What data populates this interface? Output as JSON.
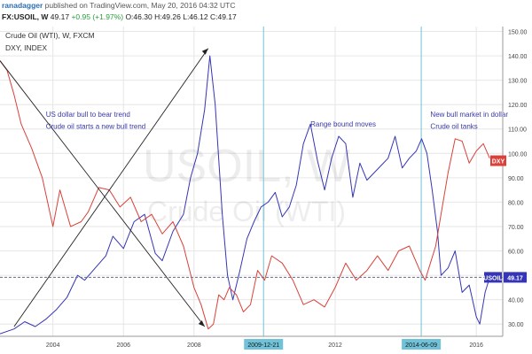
{
  "header": {
    "author": "ranadagger",
    "published": "published on TradingView.com, May 20, 2016 04:32 UTC"
  },
  "quote": {
    "symbol": "FX:USOIL, W",
    "last": "49.17",
    "change": "+0.95 (+1.97%)",
    "open": "O:46.30",
    "high": "H:49.26",
    "low": "L:46.12",
    "close": "C:49.17"
  },
  "colors": {
    "oil": "#3535b5",
    "dxy": "#d9413a",
    "vline": "#6fc2d8",
    "grid": "#e6e6e6",
    "dashed": "#6a6a8a",
    "axis_label_bg": "#6fc2d8"
  },
  "chart_data": {
    "type": "line",
    "title": "Crude Oil (WTI), W, FXCM",
    "subtitle": "DXY, INDEX",
    "watermark": "USOIL, W",
    "watermark_sub": "Crude Oil (WTI)",
    "grid": true,
    "ylim": [
      25,
      152
    ],
    "xlim": [
      2002.5,
      2016.75
    ],
    "x_ticks": [
      2004,
      2006,
      2008,
      2012,
      2016
    ],
    "x_tick_labels": [
      "2004",
      "2006",
      "2008",
      "2012",
      "2016"
    ],
    "y_ticks": [
      30,
      40,
      50,
      60,
      70,
      80,
      90,
      100,
      110,
      120,
      130,
      140,
      150
    ],
    "y_tick_labels": [
      "30.00",
      "40.00",
      "50.00",
      "60.00",
      "70.00",
      "80.00",
      "90.00",
      "100.00",
      "110.00",
      "120.00",
      "130.00",
      "140.00",
      "150.00"
    ],
    "series": [
      {
        "name": "USOIL",
        "x": [
          2002.5,
          2002.9,
          2003.2,
          2003.5,
          2003.8,
          2004.1,
          2004.4,
          2004.7,
          2004.9,
          2005.2,
          2005.5,
          2005.7,
          2006.0,
          2006.3,
          2006.6,
          2006.9,
          2007.1,
          2007.4,
          2007.7,
          2007.9,
          2008.1,
          2008.3,
          2008.45,
          2008.6,
          2008.8,
          2008.95,
          2009.1,
          2009.3,
          2009.5,
          2009.7,
          2009.9,
          2010.1,
          2010.3,
          2010.5,
          2010.7,
          2010.9,
          2011.1,
          2011.3,
          2011.5,
          2011.7,
          2011.9,
          2012.1,
          2012.3,
          2012.5,
          2012.7,
          2012.9,
          2013.1,
          2013.3,
          2013.5,
          2013.7,
          2013.9,
          2014.1,
          2014.3,
          2014.45,
          2014.6,
          2014.75,
          2014.9,
          2015.0,
          2015.2,
          2015.4,
          2015.6,
          2015.8,
          2016.0,
          2016.1,
          2016.25,
          2016.38
        ],
        "values": [
          26,
          28,
          31,
          29,
          32,
          36,
          41,
          50,
          48,
          53,
          58,
          66,
          61,
          72,
          75,
          59,
          56,
          68,
          75,
          90,
          100,
          118,
          140,
          120,
          75,
          50,
          40,
          52,
          65,
          72,
          78,
          80,
          84,
          74,
          78,
          87,
          104,
          112,
          97,
          85,
          98,
          107,
          104,
          82,
          96,
          89,
          92,
          95,
          98,
          107,
          94,
          98,
          101,
          106,
          100,
          85,
          68,
          50,
          53,
          60,
          43,
          46,
          33,
          30,
          43,
          49.17
        ]
      },
      {
        "name": "DXY",
        "x": [
          2002.5,
          2002.7,
          2002.9,
          2003.1,
          2003.4,
          2003.7,
          2004.0,
          2004.2,
          2004.5,
          2004.8,
          2005.0,
          2005.3,
          2005.6,
          2005.9,
          2006.2,
          2006.5,
          2006.8,
          2007.1,
          2007.4,
          2007.7,
          2008.0,
          2008.2,
          2008.4,
          2008.55,
          2008.7,
          2008.85,
          2009.0,
          2009.2,
          2009.4,
          2009.6,
          2009.8,
          2010.0,
          2010.2,
          2010.5,
          2010.8,
          2011.1,
          2011.4,
          2011.7,
          2012.0,
          2012.3,
          2012.6,
          2012.9,
          2013.2,
          2013.5,
          2013.8,
          2014.1,
          2014.4,
          2014.55,
          2014.7,
          2014.85,
          2015.0,
          2015.2,
          2015.4,
          2015.6,
          2015.8,
          2016.0,
          2016.2,
          2016.38
        ],
        "values": [
          138,
          134,
          124,
          112,
          102,
          90,
          70,
          85,
          70,
          72,
          76,
          86,
          85,
          78,
          82,
          72,
          75,
          67,
          72,
          62,
          45,
          38,
          28,
          30,
          42,
          40,
          45,
          42,
          35,
          38,
          52,
          48,
          58,
          55,
          48,
          38,
          40,
          37,
          45,
          55,
          48,
          52,
          58,
          52,
          60,
          62,
          52,
          48,
          55,
          62,
          75,
          92,
          106,
          105,
          96,
          101,
          104,
          98
        ]
      }
    ],
    "annotations": [
      {
        "text": "US dollar bull to bear trend",
        "x": 2003.8,
        "y": 115
      },
      {
        "text": "Crude oil starts a new bull trend",
        "x": 2003.8,
        "y": 110
      },
      {
        "text": "Range bound moves",
        "x": 2011.3,
        "y": 111
      },
      {
        "text": "New bull market in dollar",
        "x": 2014.7,
        "y": 115
      },
      {
        "text": "Crude oil tanks",
        "x": 2014.7,
        "y": 110
      }
    ],
    "trendlines": [
      {
        "x1": 2002.5,
        "y1": 138,
        "x2": 2008.3,
        "y2": 29
      },
      {
        "x1": 2002.9,
        "y1": 29,
        "x2": 2008.4,
        "y2": 143
      }
    ],
    "hlines": [
      {
        "y": 49.17,
        "style": "dashed"
      }
    ],
    "vlines": [
      {
        "x": 2009.97,
        "label": "2009-12-21"
      },
      {
        "x": 2014.44,
        "label": "2014-06-09"
      }
    ],
    "price_labels": [
      {
        "text": "USOIL",
        "value": "49.17",
        "y": 49.17
      },
      {
        "text": "DXY",
        "y": 97
      }
    ]
  }
}
